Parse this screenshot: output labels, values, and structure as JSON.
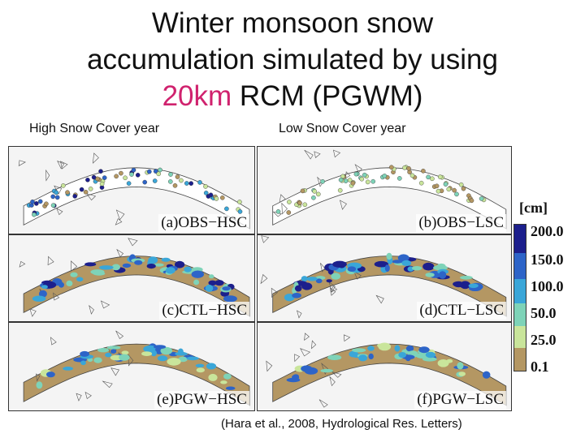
{
  "title": {
    "line1": "Winter monsoon snow",
    "line2": "accumulation simulated by using",
    "line3_highlight": "20km",
    "line3_rest": " RCM (PGWM)"
  },
  "columns": {
    "left": "High Snow Cover year",
    "right": "Low Snow Cover year"
  },
  "panels": [
    {
      "label": "(a)OBS−HSC",
      "kind": "obs"
    },
    {
      "label": "(b)OBS−LSC",
      "kind": "obs"
    },
    {
      "label": "(c)CTL−HSC",
      "kind": "model"
    },
    {
      "label": "(d)CTL−LSC",
      "kind": "model"
    },
    {
      "label": "(e)PGW−HSC",
      "kind": "model"
    },
    {
      "label": "(f)PGW−LSC",
      "kind": "model"
    }
  ],
  "colorbar": {
    "unit": "[cm]",
    "ticks": [
      "200.0",
      "150.0",
      "100.0",
      "50.0",
      "25.0",
      "0.1"
    ],
    "colors": [
      "#1c1f8c",
      "#2d64c8",
      "#3aa6d8",
      "#7ed3b8",
      "#c9e59b",
      "#b49763"
    ]
  },
  "citation": "(Hara et al., 2008, Hydrological Res. Letters)"
}
